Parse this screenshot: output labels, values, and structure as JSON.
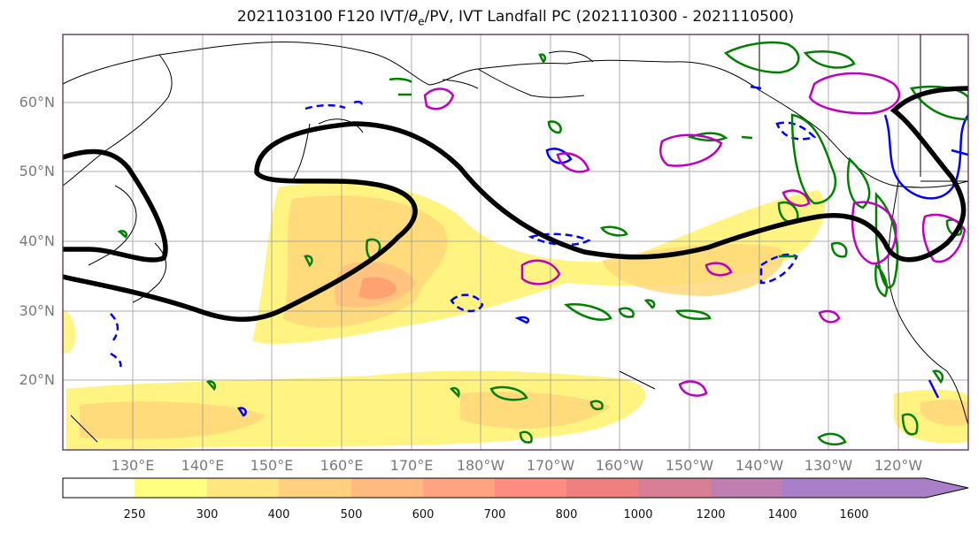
{
  "title": {
    "prefix": "2021103100 F120 IVT/",
    "theta": "θ",
    "theta_sub": "e",
    "suffix": "/PV, IVT Landfall PC (2021110300 - 2021110500)"
  },
  "axes": {
    "lat_labels": [
      "60°N",
      "50°N",
      "40°N",
      "30°N",
      "20°N"
    ],
    "lon_labels": [
      "130°E",
      "140°E",
      "150°E",
      "160°E",
      "170°E",
      "180°W",
      "170°W",
      "160°W",
      "150°W",
      "140°W",
      "130°W",
      "120°W"
    ]
  },
  "colorbar": {
    "ticks": [
      "250",
      "300",
      "400",
      "500",
      "600",
      "700",
      "800",
      "1000",
      "1200",
      "1400",
      "1600"
    ],
    "colors": [
      "#ffffff",
      "#ffff80",
      "#ffe680",
      "#ffd080",
      "#ffba80",
      "#ffa380",
      "#ff8c80",
      "#f07f80",
      "#d87f95",
      "#c07fb0",
      "#a87fc8"
    ]
  },
  "legend_colors": {
    "ridge_contour": "#000000",
    "pv_contour": "#008000",
    "theta_contour": "#0000ff",
    "landfall_contour": "#c000c0"
  }
}
